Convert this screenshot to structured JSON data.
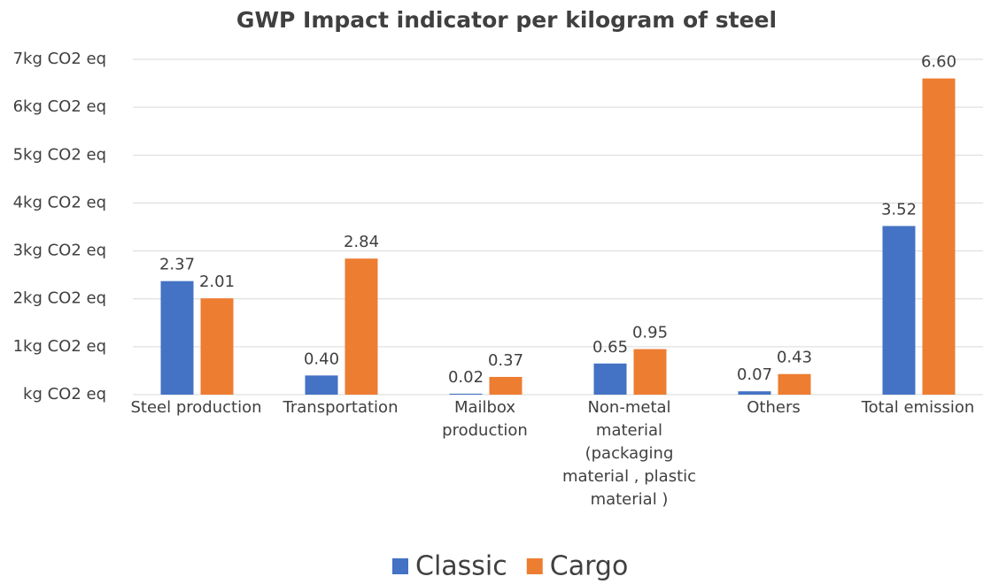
{
  "chart_data": {
    "type": "bar",
    "title": "GWP Impact indicator per kilogram of steel",
    "categories": [
      "Steel production",
      "Transportation",
      "Mailbox\nproduction",
      "Non-metal\nmaterial\n(packaging\nmaterial , plastic\nmaterial )",
      "Others",
      "Total emission"
    ],
    "series": [
      {
        "name": "Classic",
        "color": "#4472c4",
        "values": [
          2.37,
          0.4,
          0.02,
          0.65,
          0.07,
          3.52
        ],
        "value_labels": [
          "2.37",
          "0.40",
          "0.02",
          "0.65",
          "0.07",
          "3.52"
        ]
      },
      {
        "name": "Cargo",
        "color": "#ed7d31",
        "values": [
          2.01,
          2.84,
          0.37,
          0.95,
          0.43,
          6.6
        ],
        "value_labels": [
          "2.01",
          "2.84",
          "0.37",
          "0.95",
          "0.43",
          "6.60"
        ]
      }
    ],
    "ylim": [
      0,
      7
    ],
    "yticks": [
      {
        "value": 0,
        "label": "kg CO2 eq"
      },
      {
        "value": 1,
        "label": "1kg CO2 eq"
      },
      {
        "value": 2,
        "label": "2kg CO2 eq"
      },
      {
        "value": 3,
        "label": "3kg CO2 eq"
      },
      {
        "value": 4,
        "label": "4kg CO2 eq"
      },
      {
        "value": 5,
        "label": "5kg CO2 eq"
      },
      {
        "value": 6,
        "label": "6kg CO2 eq"
      },
      {
        "value": 7,
        "label": "7kg CO2 eq"
      }
    ],
    "grid": true,
    "legend": "bottom"
  }
}
